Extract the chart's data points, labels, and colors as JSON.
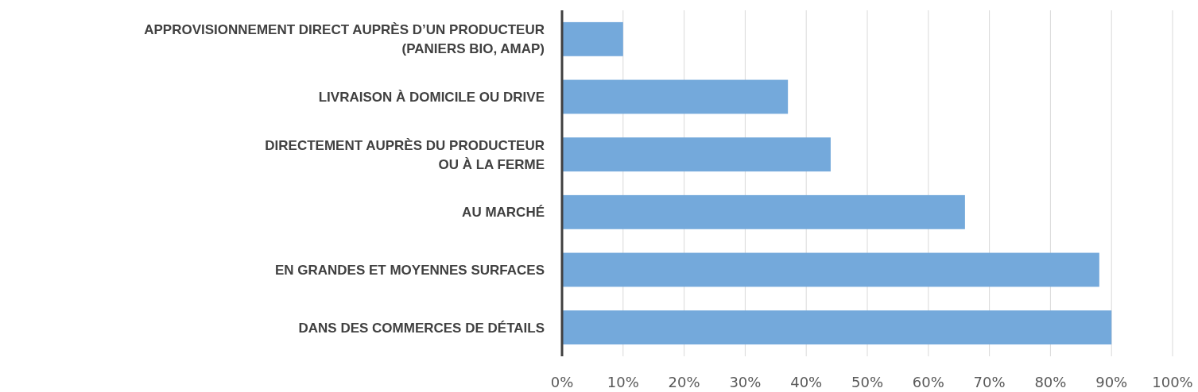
{
  "chart_data": {
    "type": "bar",
    "orientation": "horizontal",
    "categories": [
      "APPROVISIONNEMENT DIRECT AUPRÈS D’UN PRODUCTEUR\n(PANIERS BIO, AMAP)",
      "LIVRAISON À DOMICILE OU DRIVE",
      "DIRECTEMENT AUPRÈS DU PRODUCTEUR\nOU À LA FERME",
      "AU MARCHÉ",
      "EN GRANDES ET MOYENNES SURFACES",
      "DANS DES COMMERCES DE DÉTAILS"
    ],
    "values": [
      10,
      37,
      44,
      66,
      88,
      90
    ],
    "color": "#74a9db",
    "xlim": [
      0,
      100
    ],
    "xticks": [
      {
        "value": 0,
        "label": "0%"
      },
      {
        "value": 10,
        "label": "10%"
      },
      {
        "value": 20,
        "label": "20%"
      },
      {
        "value": 30,
        "label": "30%"
      },
      {
        "value": 40,
        "label": "40%"
      },
      {
        "value": 50,
        "label": "50%"
      },
      {
        "value": 60,
        "label": "60%"
      },
      {
        "value": 70,
        "label": "70%"
      },
      {
        "value": 80,
        "label": "80%"
      },
      {
        "value": 90,
        "label": "90%"
      },
      {
        "value": 100,
        "label": "100%"
      }
    ],
    "grid": "x"
  }
}
